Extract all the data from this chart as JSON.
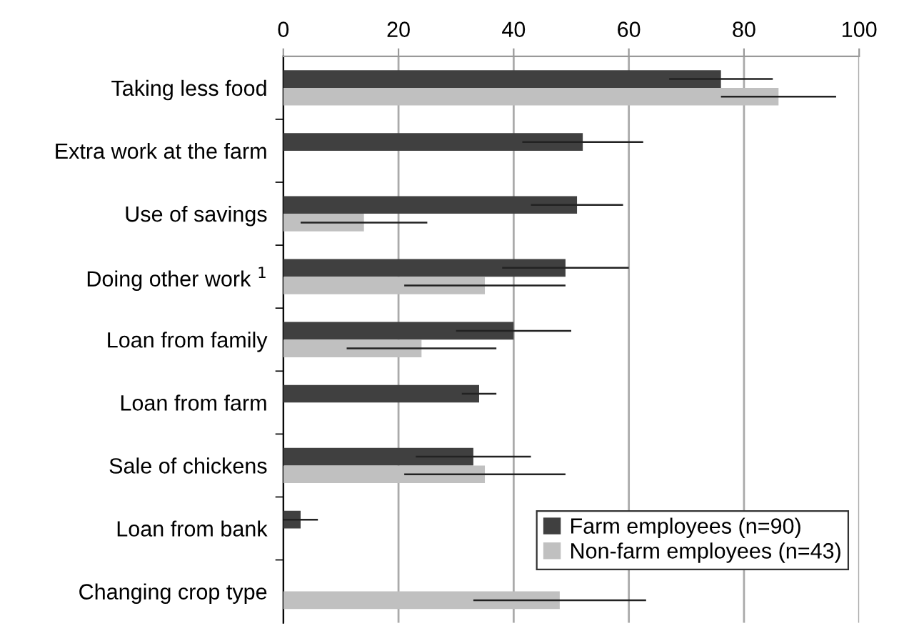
{
  "chart_data": {
    "type": "bar",
    "orientation": "horizontal",
    "categories": [
      "Taking less food",
      "Extra work at the farm",
      "Use of savings",
      "Doing other work $^{1}$",
      "Loan from family",
      "Loan from farm",
      "Sale of chickens",
      "Loan from bank",
      "Changing crop type"
    ],
    "series": [
      {
        "name": "Farm employees (n=90)",
        "color": "#404040",
        "values": [
          76,
          52,
          51,
          49,
          40,
          34,
          33,
          3,
          null
        ],
        "errors": [
          9,
          10.5,
          8,
          11,
          10,
          3,
          10,
          3,
          null
        ]
      },
      {
        "name": "Non-farm employees (n=43)",
        "color": "#c0c0c0",
        "values": [
          86,
          null,
          14,
          35,
          24,
          null,
          35,
          null,
          48
        ],
        "errors": [
          10,
          null,
          11,
          14,
          13,
          null,
          14,
          null,
          15
        ]
      }
    ],
    "xlim": [
      0,
      100
    ],
    "xticks": [
      0,
      20,
      40,
      60,
      80,
      100
    ],
    "grid": "x",
    "legend": "bottom right"
  }
}
